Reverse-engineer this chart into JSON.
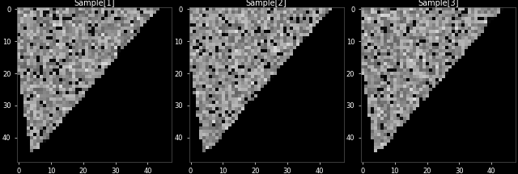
{
  "titles": [
    "Sample[1]",
    "Sample[2]",
    "Sample[3]"
  ],
  "figsize": [
    6.4,
    2.16
  ],
  "dpi": 100,
  "grid_size": 48,
  "seed": 42,
  "cmap": "gray",
  "background": "black",
  "vmin": 0,
  "vmax": 255
}
